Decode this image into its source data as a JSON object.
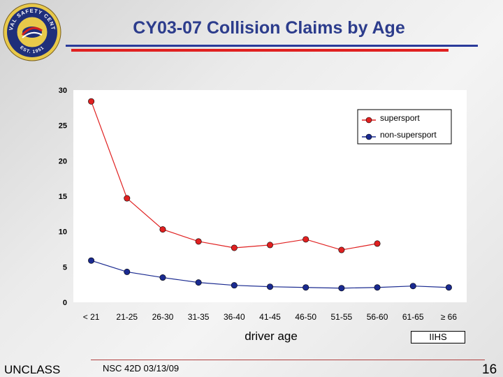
{
  "header": {
    "title": "CY03-07 Collision Claims by Age",
    "seal": {
      "text_top": "NAVAL SAFETY CENTER",
      "text_bottom": "EST. 1951",
      "colors": {
        "outer": "#e8c94a",
        "ring": "#1f2f7a",
        "inner": "#e8c94a",
        "accent": "#d02020"
      }
    }
  },
  "chart_data": {
    "type": "line",
    "categories": [
      "< 21",
      "21-25",
      "26-30",
      "31-35",
      "36-40",
      "41-45",
      "46-50",
      "51-55",
      "56-60",
      "61-65",
      "≥ 66"
    ],
    "series": [
      {
        "name": "supersport",
        "color": "#e02020",
        "marker_color": "#e02020",
        "values": [
          28.4,
          14.7,
          10.3,
          8.6,
          7.7,
          8.1,
          8.9,
          7.4,
          8.3,
          null,
          null
        ]
      },
      {
        "name": "non-supersport",
        "color": "#1a2a90",
        "marker_color": "#1a2a90",
        "values": [
          5.9,
          4.3,
          3.5,
          2.8,
          2.4,
          2.2,
          2.1,
          2.0,
          2.1,
          2.3,
          2.1
        ]
      }
    ],
    "xlabel": "driver age",
    "ylabel": "",
    "ylim": [
      0,
      30
    ],
    "yticks": [
      0,
      5,
      10,
      15,
      20,
      25,
      30
    ],
    "grid": false,
    "legend": "top-right",
    "source": "IIHS"
  },
  "footer": {
    "classification": "UNCLASS",
    "reference": "NSC 42D 03/13/09",
    "page": "16"
  }
}
